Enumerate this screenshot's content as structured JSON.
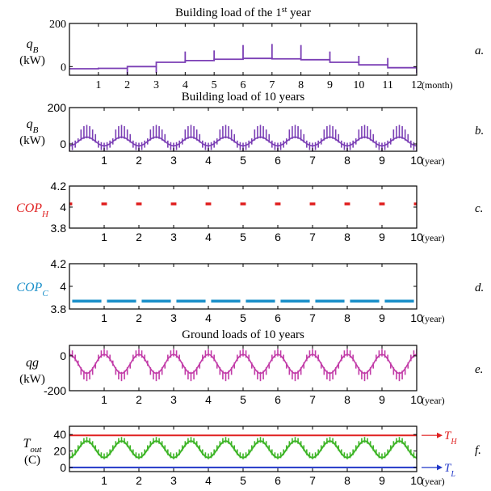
{
  "chart_data": [
    {
      "id": "a",
      "type": "line",
      "title_pre": "Building load of the 1",
      "title_sup": "st",
      "title_post": " year",
      "ylabel_var": "q",
      "ylabel_sub": "B",
      "ylabel_unit": "(kW)",
      "ylabel_color": "#000000",
      "panel_label": "a.",
      "xlabel": "(month)",
      "xlim": [
        0,
        12
      ],
      "ylim": [
        -40,
        200
      ],
      "yticks": [
        "200",
        "0"
      ],
      "ytick_values": [
        200,
        0
      ],
      "xticks": [
        "1",
        "2",
        "3",
        "4",
        "5",
        "6",
        "7",
        "8",
        "9",
        "10",
        "11",
        "12"
      ],
      "tick_font": "serif",
      "color": "#7b3fb5",
      "series": [
        {
          "monthly_base": [
            -10,
            -8,
            0,
            20,
            28,
            34,
            38,
            36,
            32,
            20,
            8,
            -5
          ],
          "monthly_peak": [
            -5,
            -38,
            -30,
            70,
            75,
            100,
            105,
            100,
            70,
            50,
            40,
            -30
          ]
        }
      ]
    },
    {
      "id": "b",
      "type": "line",
      "title": "Building load of 10 years",
      "ylabel_var": "q",
      "ylabel_sub": "B",
      "ylabel_unit": "(kW)",
      "ylabel_color": "#000000",
      "panel_label": "b.",
      "xlabel": "(year)",
      "xlim": [
        0,
        10
      ],
      "ylim": [
        -40,
        200
      ],
      "yticks": [
        "200",
        "0"
      ],
      "ytick_values": [
        200,
        0
      ],
      "xticks": [
        "1",
        "2",
        "3",
        "4",
        "5",
        "6",
        "7",
        "8",
        "9",
        "10"
      ],
      "tick_font": "sans",
      "color": "#7b3fb5",
      "series": [
        {
          "periodic": "yearly",
          "base_min": -10,
          "base_max": 38,
          "spike_min": -38,
          "spike_max": 105
        }
      ]
    },
    {
      "id": "c",
      "type": "line",
      "ylabel_var": "COP",
      "ylabel_sub": "H",
      "ylabel_color": "#e02020",
      "panel_label": "c.",
      "xlabel": "(year)",
      "xlim": [
        0,
        10
      ],
      "ylim": [
        3.8,
        4.2
      ],
      "yticks": [
        "4.2",
        "4",
        "3.8"
      ],
      "ytick_values": [
        4.2,
        4.0,
        3.8
      ],
      "xticks": [
        "1",
        "2",
        "3",
        "4",
        "5",
        "6",
        "7",
        "8",
        "9",
        "10"
      ],
      "tick_font": "sans",
      "color": "#e02020",
      "series": [
        {
          "value": 4.03,
          "segments_per_year": "heating months"
        }
      ]
    },
    {
      "id": "d",
      "type": "line",
      "ylabel_var": "COP",
      "ylabel_sub": "C",
      "ylabel_color": "#1a8fc9",
      "panel_label": "d.",
      "xlabel": "(year)",
      "xlim": [
        0,
        10
      ],
      "ylim": [
        3.8,
        4.2
      ],
      "yticks": [
        "4.2",
        "4",
        "3.8"
      ],
      "ytick_values": [
        4.2,
        4.0,
        3.8
      ],
      "xticks": [
        "1",
        "2",
        "3",
        "4",
        "5",
        "6",
        "7",
        "8",
        "9",
        "10"
      ],
      "tick_font": "sans",
      "color": "#1a8fc9",
      "series": [
        {
          "value": 3.87,
          "segments_per_year": "cooling months"
        }
      ]
    },
    {
      "id": "e",
      "type": "line",
      "title": "Ground loads of 10 years",
      "ylabel_var": "qg",
      "ylabel_unit": "(kW)",
      "ylabel_color": "#000000",
      "panel_label": "e.",
      "xlabel": "(year)",
      "xlim": [
        0,
        10
      ],
      "ylim": [
        -200,
        60
      ],
      "yticks": [
        "0",
        "-200"
      ],
      "ytick_values": [
        0,
        -200
      ],
      "xticks": [
        "1",
        "2",
        "3",
        "4",
        "5",
        "6",
        "7",
        "8",
        "9",
        "10"
      ],
      "tick_font": "sans",
      "color": "#c23ca8",
      "series": [
        {
          "periodic": "yearly",
          "base_min": -100,
          "base_max": 8,
          "spike_min": -145,
          "spike_max": 40
        }
      ]
    },
    {
      "id": "f",
      "type": "line",
      "ylabel_var": "T",
      "ylabel_sub": "out",
      "ylabel_unit": "(C)",
      "ylabel_color": "#000000",
      "panel_label": "f.",
      "xlabel": "(year)",
      "xlim": [
        0,
        10
      ],
      "ylim": [
        -5,
        50
      ],
      "yticks": [
        "40",
        "20",
        "0"
      ],
      "ytick_values": [
        40,
        20,
        0
      ],
      "xticks": [
        "1",
        "2",
        "3",
        "4",
        "5",
        "6",
        "7",
        "8",
        "9",
        "10"
      ],
      "tick_font": "sans",
      "series": [
        {
          "name": "T",
          "name_sub": "H",
          "value": 39,
          "color": "#e02020"
        },
        {
          "name": "T",
          "name_sub": "L",
          "value": 0,
          "color": "#2238c8"
        },
        {
          "name": "T_out",
          "periodic": "yearly",
          "base_min": 12,
          "base_max": 32,
          "spike_max": 40,
          "color": "#3fb528"
        }
      ]
    }
  ]
}
